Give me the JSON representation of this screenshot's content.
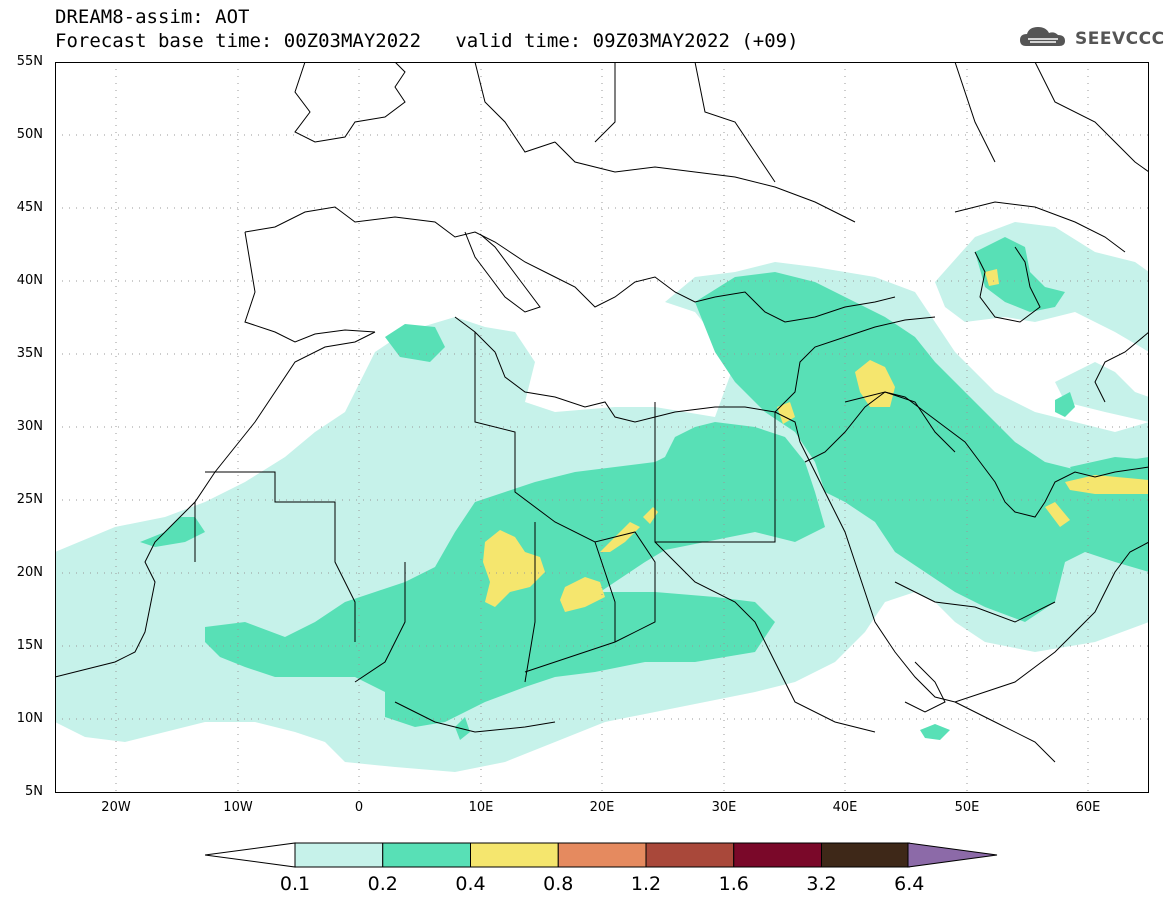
{
  "header": {
    "title": "DREAM8-assim: AOT",
    "base_time_line": "Forecast base time: 00Z03MAY2022   valid time: 09Z03MAY2022 (+09)"
  },
  "logo": {
    "text": "SEEVCCC",
    "icon": "cloud-icon"
  },
  "map": {
    "projection": "lat-lon",
    "lon_range": [
      -25,
      65
    ],
    "lat_range": [
      5,
      55
    ],
    "grid_lines": "dotted",
    "lat_ticks": [
      "55N",
      "50N",
      "45N",
      "40N",
      "35N",
      "30N",
      "25N",
      "20N",
      "15N",
      "10N",
      "5N"
    ],
    "lon_ticks": [
      "20W",
      "10W",
      "0",
      "10E",
      "20E",
      "30E",
      "40E",
      "50E",
      "60E"
    ],
    "land_color": "#ffffff",
    "boundary_color": "#000000"
  },
  "colorbar": {
    "labels": [
      "0.1",
      "0.2",
      "0.4",
      "0.8",
      "1.2",
      "1.6",
      "3.2",
      "6.4"
    ],
    "colors": [
      "#c6f2ea",
      "#58e0b6",
      "#f5e66e",
      "#e58a5f",
      "#a9483a",
      "#7a0829",
      "#3e2818",
      "#8c6aa8"
    ]
  }
}
